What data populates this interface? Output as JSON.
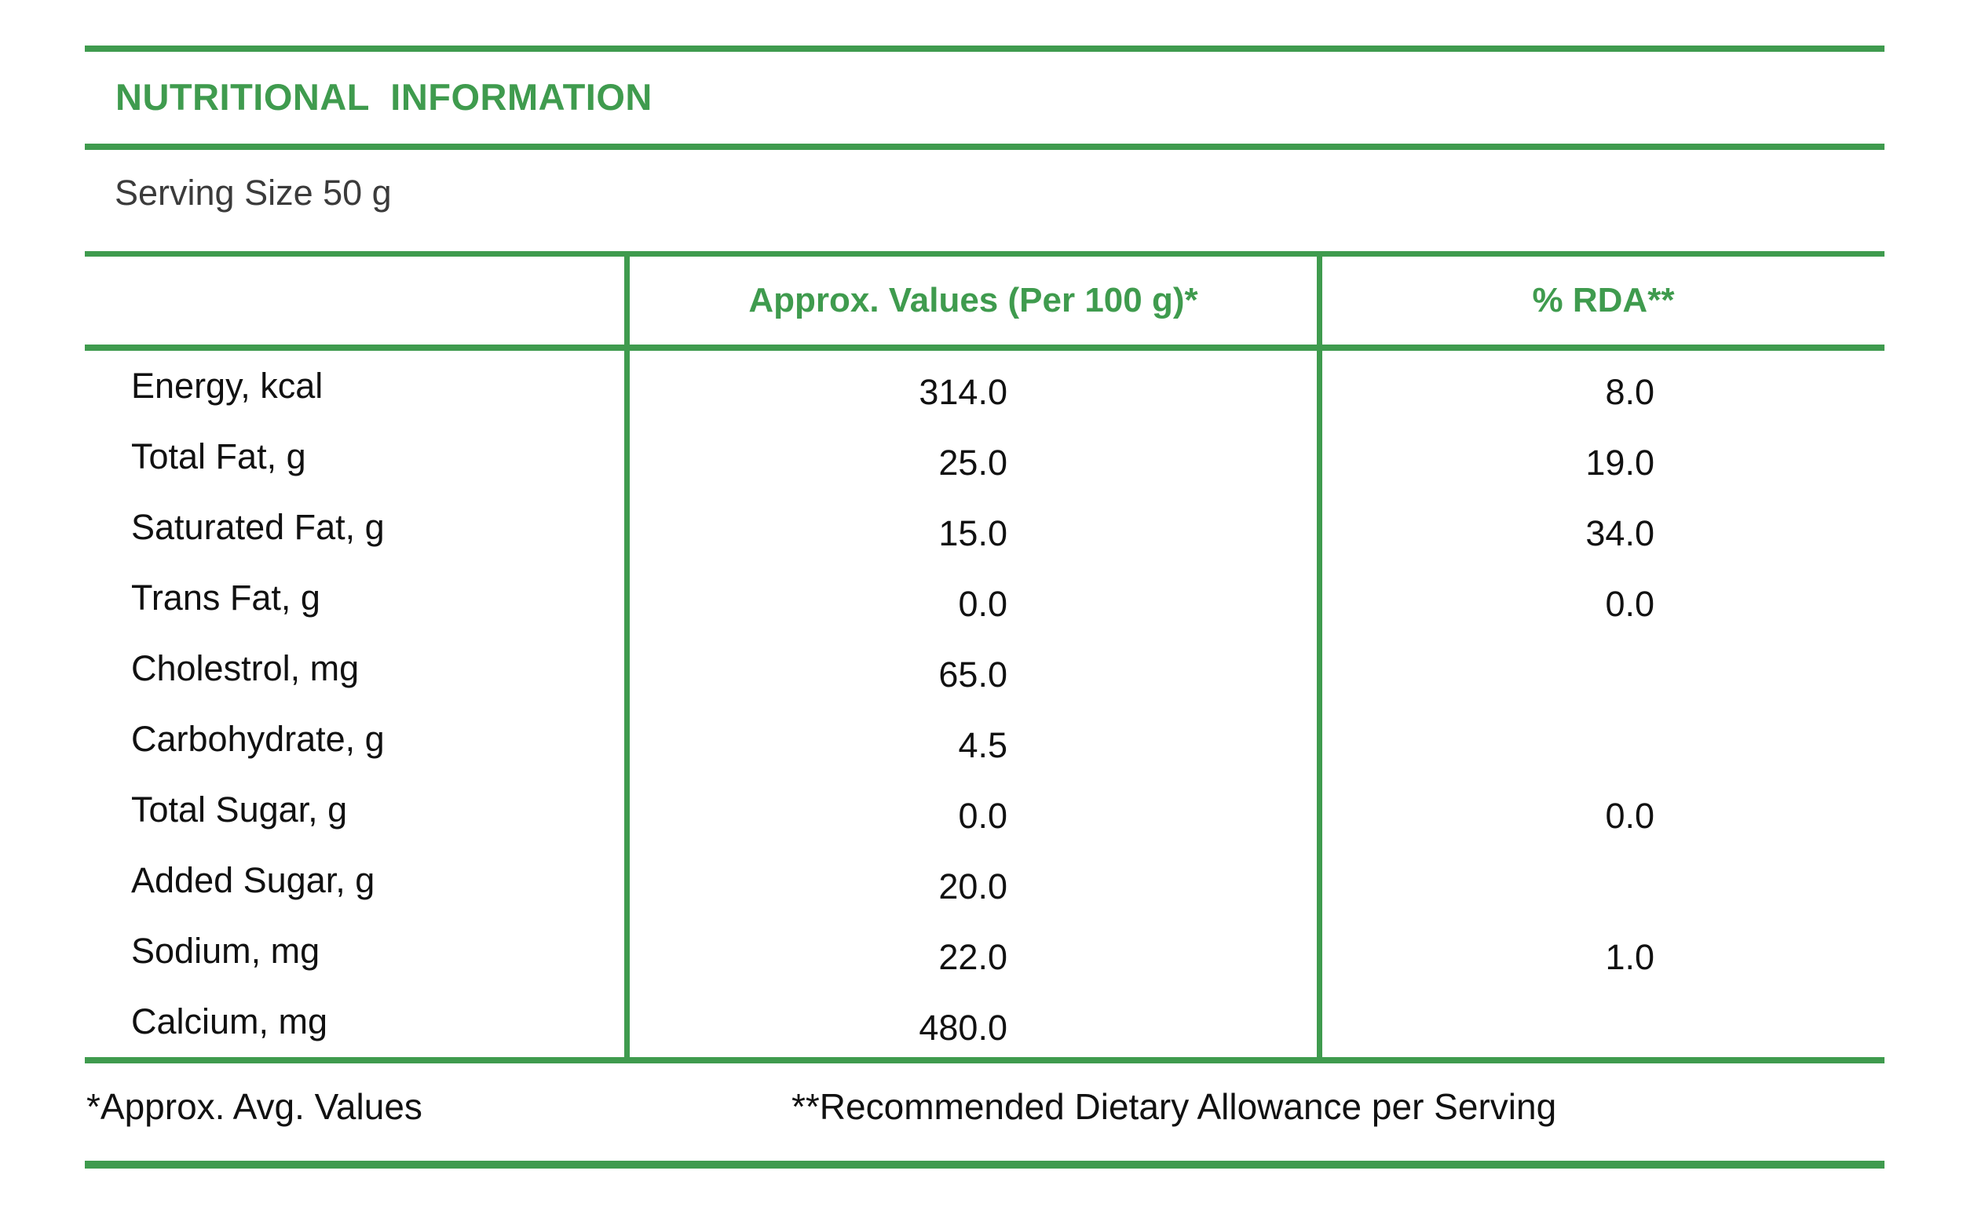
{
  "title": "NUTRITIONAL  INFORMATION",
  "serving_size": "Serving Size 50 g",
  "colors": {
    "accent_green": "#3f9b4e",
    "text": "#111111",
    "serving_text": "#3b3b3b"
  },
  "table": {
    "columns": [
      {
        "label": ""
      },
      {
        "label": "Approx. Values (Per 100 g)*"
      },
      {
        "label": "% RDA**"
      }
    ],
    "rows": [
      {
        "label": "Energy, kcal",
        "value": "314.0",
        "rda": "8.0"
      },
      {
        "label": "Total Fat, g",
        "value": "25.0",
        "rda": "19.0"
      },
      {
        "label": "Saturated Fat, g",
        "value": "15.0",
        "rda": "34.0"
      },
      {
        "label": "Trans Fat, g",
        "value": "0.0",
        "rda": "0.0"
      },
      {
        "label": "Cholestrol, mg",
        "value": "65.0",
        "rda": ""
      },
      {
        "label": "Carbohydrate, g",
        "value": "4.5",
        "rda": ""
      },
      {
        "label": "Total Sugar, g",
        "value": "0.0",
        "rda": "0.0"
      },
      {
        "label": "Added Sugar, g",
        "value": "20.0",
        "rda": ""
      },
      {
        "label": "Sodium, mg",
        "value": "22.0",
        "rda": "1.0"
      },
      {
        "label": "Calcium, mg",
        "value": "480.0",
        "rda": ""
      }
    ]
  },
  "footnotes": {
    "left": "*Approx. Avg. Values",
    "right": "**Recommended Dietary Allowance per Serving"
  }
}
